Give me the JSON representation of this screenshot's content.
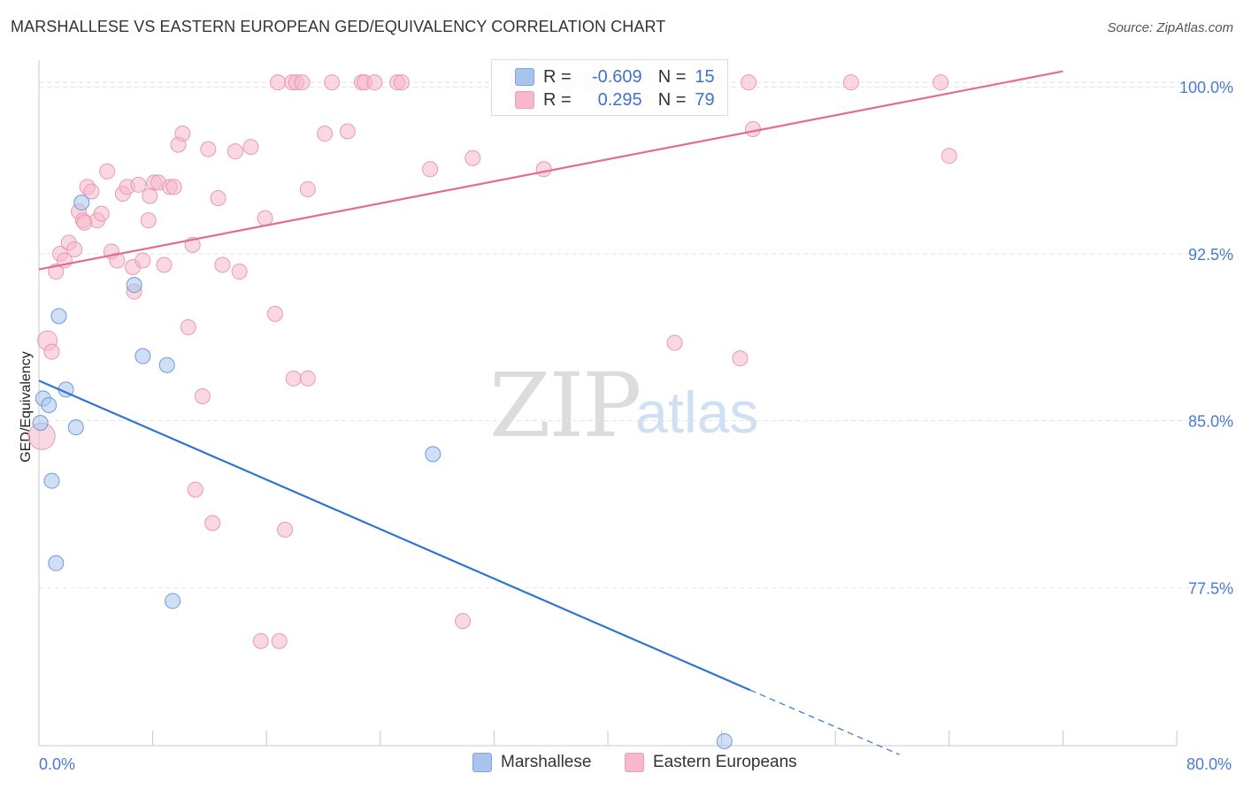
{
  "header": {
    "title": "MARSHALLESE VS EASTERN EUROPEAN GED/EQUIVALENCY CORRELATION CHART",
    "source": "Source: ZipAtlas.com"
  },
  "watermark": {
    "zip": "ZIP",
    "atlas": "atlas"
  },
  "legend": {
    "rows": [
      {
        "r_label": "R =",
        "r_value": "-0.609",
        "n_label": "N =",
        "n_value": "15",
        "color": "#a9c4ec"
      },
      {
        "r_label": "R =",
        "r_value": "0.295",
        "n_label": "N =",
        "n_value": "79",
        "color": "#f6b8ca"
      }
    ]
  },
  "bottom_legend": {
    "items": [
      {
        "label": "Marshallese",
        "color": "#a9c4ec"
      },
      {
        "label": "Eastern Europeans",
        "color": "#f6b8ca"
      }
    ]
  },
  "chart_data": {
    "type": "scatter",
    "title": "MARSHALLESE VS EASTERN EUROPEAN GED/EQUIVALENCY CORRELATION CHART",
    "xlabel": "",
    "ylabel": "GED/Equivalency",
    "xlim": [
      0,
      80
    ],
    "ylim": [
      70.4,
      101.2
    ],
    "x_tick_labels": [
      "0.0%",
      "80.0%"
    ],
    "y_ticks": [
      77.5,
      85.0,
      92.5,
      100.0
    ],
    "y_tick_labels": [
      "77.5%",
      "85.0%",
      "92.5%",
      "100.0%"
    ],
    "grid": true,
    "legend_position": "top-center",
    "series": [
      {
        "name": "Marshallese",
        "color": "#a9c4ec",
        "stroke": "#6f9ad9",
        "trend_color": "#2f74d0",
        "trend": {
          "x0": 0.0,
          "y0": 86.8,
          "x1": 50.0,
          "y1": 72.9,
          "dash_to_x": 60.5,
          "dash_to_y": 70.0
        },
        "points": [
          [
            0.1,
            84.9
          ],
          [
            0.3,
            86.0
          ],
          [
            0.7,
            85.7
          ],
          [
            0.9,
            82.3
          ],
          [
            1.2,
            78.6
          ],
          [
            1.4,
            89.7
          ],
          [
            1.9,
            86.4
          ],
          [
            2.6,
            84.7
          ],
          [
            3.0,
            94.8
          ],
          [
            6.7,
            91.1
          ],
          [
            7.3,
            87.9
          ],
          [
            9.0,
            87.5
          ],
          [
            9.4,
            76.9
          ],
          [
            27.7,
            83.5
          ],
          [
            48.2,
            70.6
          ]
        ]
      },
      {
        "name": "Eastern Europeans",
        "color": "#f6b8ca",
        "stroke": "#e89ab0",
        "trend_color": "#e46b92",
        "trend": {
          "x0": 0.0,
          "y0": 91.8,
          "x1": 72.0,
          "y1": 100.7
        },
        "points": [
          [
            0.2,
            84.3
          ],
          [
            0.6,
            88.6
          ],
          [
            0.9,
            88.1
          ],
          [
            1.2,
            91.7
          ],
          [
            1.5,
            92.5
          ],
          [
            1.8,
            92.2
          ],
          [
            2.1,
            93.0
          ],
          [
            2.5,
            92.7
          ],
          [
            2.8,
            94.4
          ],
          [
            3.1,
            94.0
          ],
          [
            3.4,
            95.5
          ],
          [
            3.7,
            95.3
          ],
          [
            4.1,
            94.0
          ],
          [
            4.4,
            94.3
          ],
          [
            4.8,
            96.2
          ],
          [
            5.1,
            92.6
          ],
          [
            5.5,
            92.2
          ],
          [
            5.9,
            95.2
          ],
          [
            6.2,
            95.5
          ],
          [
            6.6,
            91.9
          ],
          [
            6.7,
            90.8
          ],
          [
            7.0,
            95.6
          ],
          [
            7.3,
            92.2
          ],
          [
            7.7,
            94.0
          ],
          [
            7.8,
            95.1
          ],
          [
            8.1,
            95.7
          ],
          [
            8.4,
            95.7
          ],
          [
            8.8,
            92.0
          ],
          [
            9.2,
            95.5
          ],
          [
            9.5,
            95.5
          ],
          [
            9.8,
            97.4
          ],
          [
            10.1,
            97.9
          ],
          [
            10.5,
            89.2
          ],
          [
            10.8,
            92.9
          ],
          [
            11.5,
            86.1
          ],
          [
            11.9,
            97.2
          ],
          [
            12.2,
            80.4
          ],
          [
            12.6,
            95.0
          ],
          [
            12.9,
            92.0
          ],
          [
            13.8,
            97.1
          ],
          [
            14.1,
            91.7
          ],
          [
            14.9,
            97.3
          ],
          [
            15.6,
            75.1
          ],
          [
            15.9,
            94.1
          ],
          [
            16.6,
            89.8
          ],
          [
            16.8,
            100.2
          ],
          [
            16.9,
            75.1
          ],
          [
            17.3,
            80.1
          ],
          [
            17.8,
            100.2
          ],
          [
            17.9,
            86.9
          ],
          [
            18.1,
            100.2
          ],
          [
            18.5,
            100.2
          ],
          [
            18.9,
            86.9
          ],
          [
            18.9,
            95.4
          ],
          [
            20.1,
            97.9
          ],
          [
            20.6,
            100.2
          ],
          [
            21.7,
            98.0
          ],
          [
            22.7,
            100.2
          ],
          [
            22.9,
            100.2
          ],
          [
            23.6,
            100.2
          ],
          [
            25.2,
            100.2
          ],
          [
            25.5,
            100.2
          ],
          [
            27.5,
            96.3
          ],
          [
            29.8,
            76.0
          ],
          [
            30.5,
            96.8
          ],
          [
            33.6,
            100.2
          ],
          [
            35.5,
            96.3
          ],
          [
            37.2,
            100.2
          ],
          [
            38.8,
            100.2
          ],
          [
            44.7,
            88.5
          ],
          [
            47.5,
            100.2
          ],
          [
            49.3,
            87.8
          ],
          [
            49.9,
            100.2
          ],
          [
            50.2,
            98.1
          ],
          [
            57.1,
            100.2
          ],
          [
            63.4,
            100.2
          ],
          [
            64.0,
            96.9
          ],
          [
            11.0,
            81.9
          ],
          [
            3.2,
            93.9
          ]
        ]
      }
    ]
  }
}
